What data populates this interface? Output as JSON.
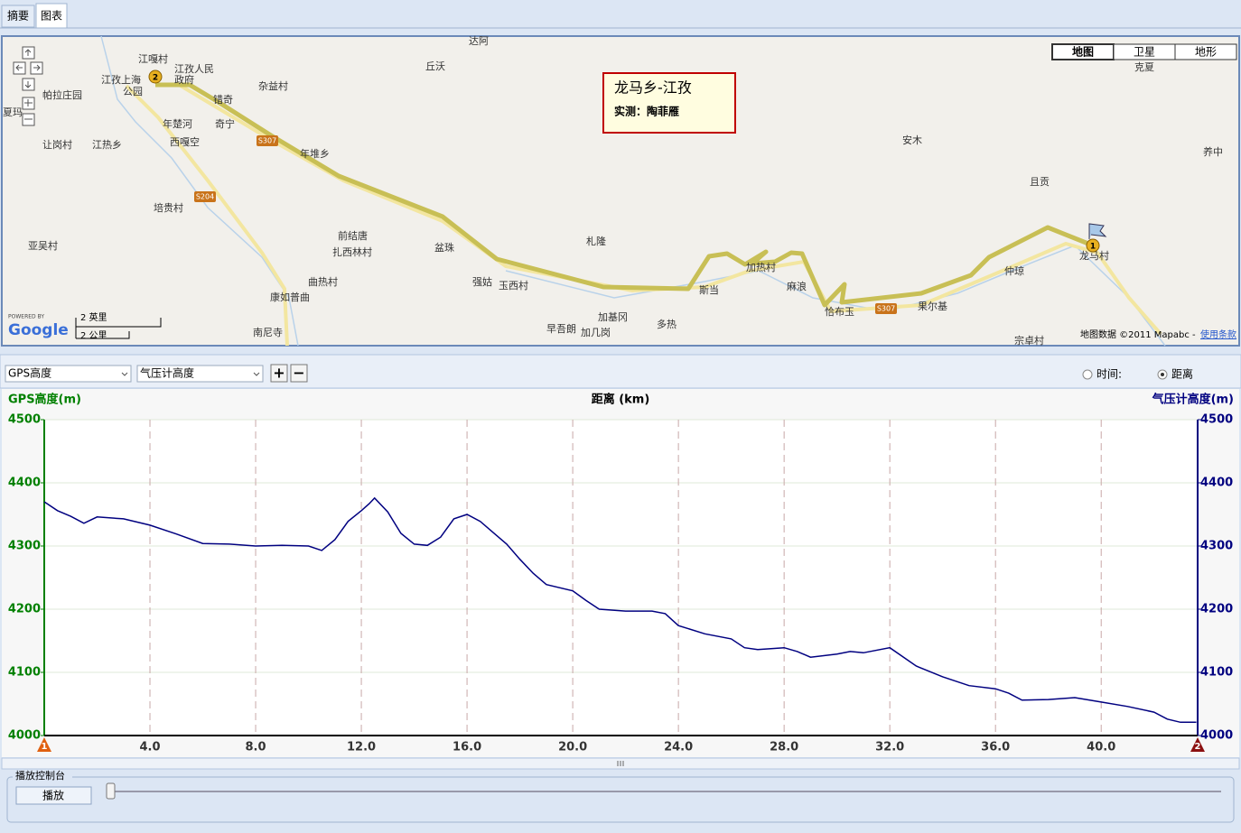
{
  "tabs": [
    "摘要",
    "图表"
  ],
  "map": {
    "info_title": "龙马乡-江孜",
    "info_subtitle": "实测：陶菲雁",
    "map_types": [
      "地图",
      "卫星",
      "地形"
    ],
    "labels": [
      "江嘎村",
      "江孜人民",
      "政府",
      "江孜上海",
      "公园",
      "帕拉庄园",
      "夏玛",
      "让岗村",
      "江热乡",
      "年楚河",
      "西嘎空",
      "奇宁",
      "错奇",
      "杂益村",
      "丘沃",
      "达阿",
      "年堆乡",
      "培贵村",
      "亚吴村",
      "前结唐",
      "扎西林村",
      "盆珠",
      "札隆",
      "强姑",
      "玉西村",
      "曲热村",
      "康如普曲",
      "南尼寺",
      "早吾朗",
      "加基冈",
      "加几岗",
      "多热",
      "斯当",
      "加热村",
      "麻浪",
      "恰布玉",
      "果尔基",
      "安木",
      "且贡",
      "克夏",
      "养中",
      "龙马村",
      "仲琼",
      "宗卓村"
    ],
    "roads": [
      "S307",
      "S204",
      "S307"
    ],
    "markers": [
      "2",
      "1"
    ],
    "scale_miles": "2 英里",
    "scale_km": "2 公里",
    "powered_by": "POWERED BY",
    "google": "Google",
    "attribution": "地图数据 ©2011 Mapabc - ",
    "terms": "使用条款"
  },
  "toolbar": {
    "left_select": "GPS高度",
    "right_select": "气压计高度",
    "zoom_in": "+",
    "zoom_out": "−",
    "radio_time": "时间:",
    "radio_distance": "距离"
  },
  "chart_data": {
    "type": "line",
    "x_label": "距离 (km)",
    "y_label": "GPS高度(m)",
    "y2_label": "气压计高度(m)",
    "xlim": [
      0,
      43.65
    ],
    "ylim": [
      4000,
      4500
    ],
    "y2lim": [
      4000,
      4500
    ],
    "xticks": [
      {
        "value": 4,
        "label": "4.0"
      },
      {
        "value": 8,
        "label": "8.0"
      },
      {
        "value": 12,
        "label": "12.0"
      },
      {
        "value": 16,
        "label": "16.0"
      },
      {
        "value": 20,
        "label": "20.0"
      },
      {
        "value": 24,
        "label": "24.0"
      },
      {
        "value": 28,
        "label": "28.0"
      },
      {
        "value": 32,
        "label": "32.0"
      },
      {
        "value": 36,
        "label": "36.0"
      },
      {
        "value": 40,
        "label": "40.0"
      }
    ],
    "yticks": [
      4000,
      4100,
      4200,
      4300,
      4400,
      4500
    ],
    "y2ticks": [
      4000,
      4100,
      4200,
      4300,
      4400,
      4500
    ],
    "grid": true,
    "start_marker": "1",
    "end_marker": "2",
    "x": [
      0,
      0.5,
      1,
      1.5,
      2,
      3,
      4,
      5,
      6,
      7,
      8,
      9,
      10,
      10.5,
      11,
      11.5,
      12,
      12.3,
      12.5,
      13,
      13.5,
      14,
      14.5,
      15,
      15.5,
      16,
      16.5,
      17,
      17.5,
      18,
      18.5,
      19,
      20,
      20.5,
      21,
      22,
      23,
      23.5,
      24,
      25,
      26,
      26.5,
      27,
      28,
      28.5,
      29,
      30,
      30.5,
      31,
      32,
      33,
      34,
      35,
      36,
      36.5,
      37,
      38,
      39,
      40,
      41,
      42,
      42.5,
      43,
      43.6
    ],
    "series": [
      {
        "color": "#000080",
        "values": [
          4370,
          4356,
          4347,
          4336,
          4346,
          4343,
          4333,
          4319,
          4304,
          4303,
          4300,
          4301,
          4300,
          4293,
          4310,
          4339,
          4356,
          4367,
          4376,
          4354,
          4320,
          4303,
          4301,
          4314,
          4343,
          4350,
          4339,
          4321,
          4303,
          4279,
          4257,
          4239,
          4229,
          4214,
          4200,
          4197,
          4197,
          4193,
          4174,
          4161,
          4153,
          4139,
          4136,
          4139,
          4133,
          4124,
          4129,
          4133,
          4131,
          4139,
          4110,
          4093,
          4079,
          4074,
          4067,
          4056,
          4057,
          4060,
          4053,
          4046,
          4037,
          4026,
          4021,
          4021
        ]
      }
    ]
  },
  "playback": {
    "group_title": "播放控制台",
    "play_button": "播放"
  }
}
